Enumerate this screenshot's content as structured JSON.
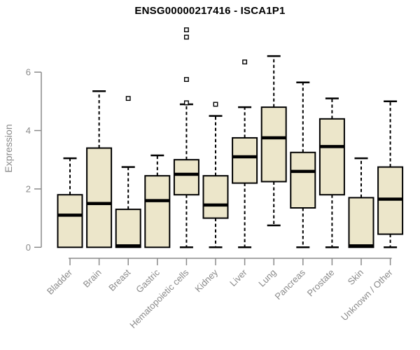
{
  "page": {
    "background_color": "#ffffff"
  },
  "chart_data": {
    "type": "boxplot",
    "title": "ENSG00000217416 - ISCA1P1",
    "xlabel": "",
    "ylabel": "Expression",
    "ylim": [
      0,
      6
    ],
    "yticks": [
      0,
      2,
      4,
      6
    ],
    "grid": false,
    "legend": "none",
    "colors": {
      "box_fill": "#ECE6CA",
      "box_stroke": "#000000",
      "median_color": "#000000",
      "whisker_color": "#000000",
      "outlier_fill": "#ffffff",
      "outlier_stroke": "#000000",
      "axis_color": "#8a8a8a",
      "title_color": "#000000"
    },
    "categories": [
      "Bladder",
      "Brain",
      "Breast",
      "Gastric",
      "Hematopoietic cells",
      "Kidney",
      "Liver",
      "Lung",
      "Pancreas",
      "Prostate",
      "Skin",
      "Unknown / Other"
    ],
    "series": [
      {
        "category": "Bladder",
        "low": 0,
        "q1": 0,
        "median": 1.1,
        "q3": 1.8,
        "high": 3.05,
        "outliers": []
      },
      {
        "category": "Brain",
        "low": 0,
        "q1": 0,
        "median": 1.5,
        "q3": 3.4,
        "high": 5.35,
        "outliers": []
      },
      {
        "category": "Breast",
        "low": 0,
        "q1": 0,
        "median": 0.05,
        "q3": 1.3,
        "high": 2.75,
        "outliers": [
          5.1
        ]
      },
      {
        "category": "Gastric",
        "low": 0,
        "q1": 0,
        "median": 1.6,
        "q3": 2.45,
        "high": 3.15,
        "outliers": []
      },
      {
        "category": "Hematopoietic cells",
        "low": 0,
        "q1": 1.8,
        "median": 2.5,
        "q3": 3.0,
        "high": 4.9,
        "outliers": [
          4.95,
          5.75,
          7.2,
          7.45
        ]
      },
      {
        "category": "Kidney",
        "low": 0,
        "q1": 1.0,
        "median": 1.45,
        "q3": 2.45,
        "high": 4.5,
        "outliers": [
          4.9
        ]
      },
      {
        "category": "Liver",
        "low": 0,
        "q1": 2.2,
        "median": 3.1,
        "q3": 3.75,
        "high": 4.8,
        "outliers": [
          6.35
        ]
      },
      {
        "category": "Lung",
        "low": 0.75,
        "q1": 2.25,
        "median": 3.75,
        "q3": 4.8,
        "high": 6.55,
        "outliers": []
      },
      {
        "category": "Pancreas",
        "low": 0,
        "q1": 1.35,
        "median": 2.6,
        "q3": 3.25,
        "high": 5.65,
        "outliers": []
      },
      {
        "category": "Prostate",
        "low": 0,
        "q1": 1.8,
        "median": 3.45,
        "q3": 4.4,
        "high": 5.1,
        "outliers": []
      },
      {
        "category": "Skin",
        "low": 0,
        "q1": 0,
        "median": 0.05,
        "q3": 1.7,
        "high": 3.05,
        "outliers": []
      },
      {
        "category": "Unknown / Other",
        "low": 0,
        "q1": 0.45,
        "median": 1.65,
        "q3": 2.75,
        "high": 5.0,
        "outliers": []
      }
    ]
  }
}
